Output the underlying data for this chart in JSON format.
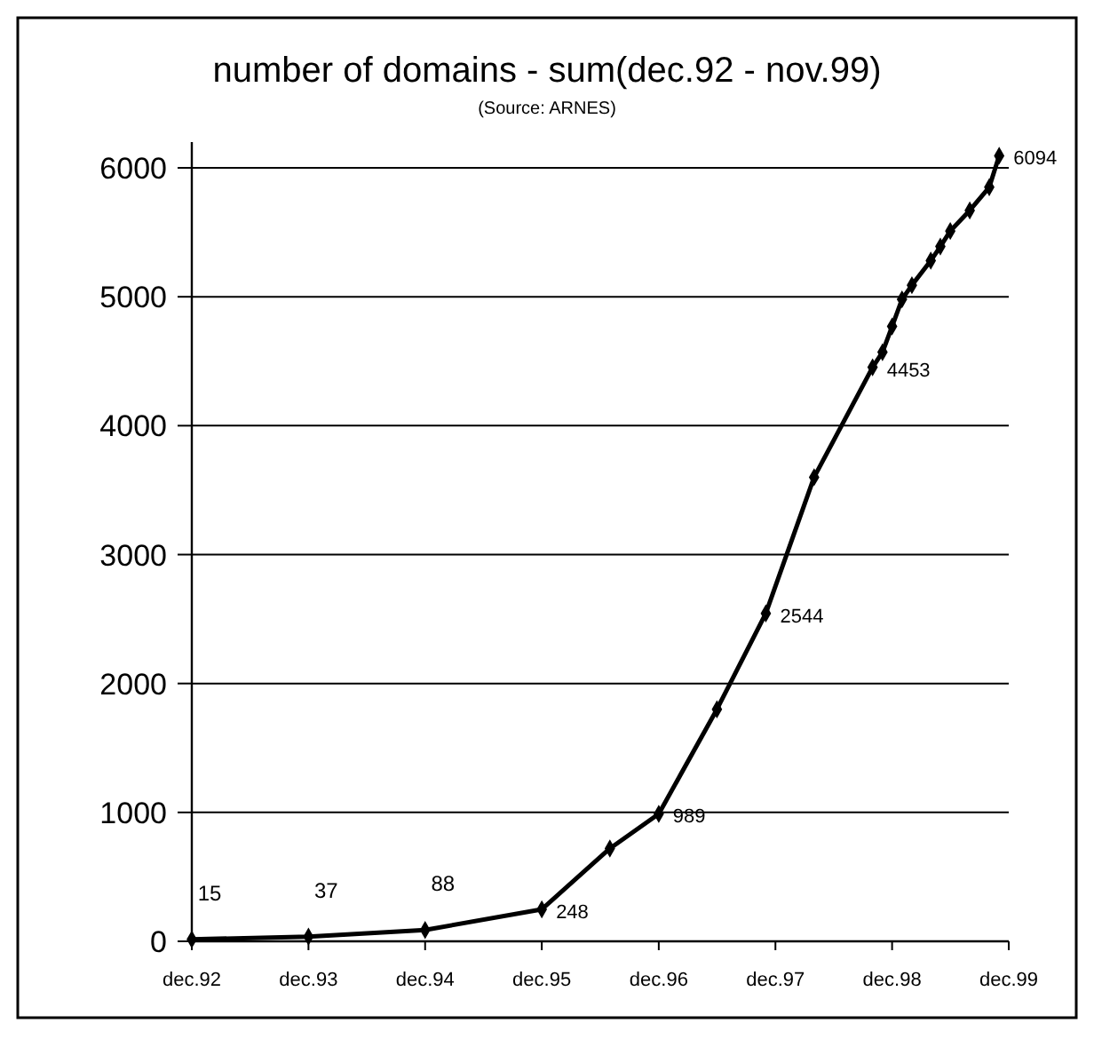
{
  "chart_data": {
    "type": "line",
    "title": "number of domains - sum(dec.92 - nov.99)",
    "subtitle": "(Source: ARNES)",
    "x": [
      "1992-12",
      "1993-12",
      "1994-12",
      "1995-12",
      "1996-07",
      "1996-12",
      "1997-06",
      "1997-11",
      "1998-04",
      "1998-10",
      "1998-11",
      "1998-12",
      "1999-01",
      "1999-02",
      "1999-04",
      "1999-05",
      "1999-06",
      "1999-08",
      "1999-10",
      "1999-11"
    ],
    "series": [
      {
        "color": "#000000",
        "values": [
          15,
          37,
          88,
          248,
          720,
          989,
          1800,
          2544,
          3600,
          4453,
          4570,
          4770,
          4980,
          5090,
          5280,
          5390,
          5510,
          5670,
          5850,
          6094
        ],
        "value_labels": [
          "15",
          "37",
          "88",
          "248",
          null,
          "989",
          null,
          "2544",
          null,
          "4453",
          null,
          null,
          null,
          null,
          null,
          null,
          null,
          null,
          null,
          "6094"
        ]
      }
    ],
    "xlim": [
      "1992-12",
      "1999-12"
    ],
    "xticks": [
      {
        "value": "1992-12",
        "label": "dec.92"
      },
      {
        "value": "1993-12",
        "label": "dec.93"
      },
      {
        "value": "1994-12",
        "label": "dec.94"
      },
      {
        "value": "1995-12",
        "label": "dec.95"
      },
      {
        "value": "1996-12",
        "label": "dec.96"
      },
      {
        "value": "1997-12",
        "label": "dec.97"
      },
      {
        "value": "1998-12",
        "label": "dec.98"
      },
      {
        "value": "1999-12",
        "label": "dec.99"
      }
    ],
    "ylim": [
      0,
      6200
    ],
    "yticks": [
      0,
      1000,
      2000,
      3000,
      4000,
      5000,
      6000
    ],
    "grid": "y",
    "marker": "diamond",
    "line_style": "solid"
  }
}
